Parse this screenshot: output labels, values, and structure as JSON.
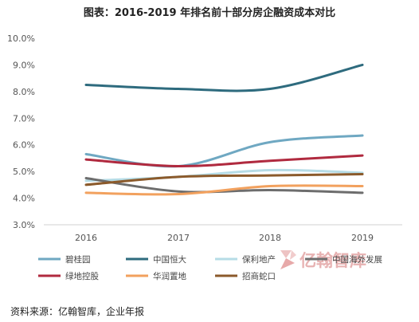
{
  "chart_data": {
    "type": "line",
    "title": "图表：2016-2019 年排名前十部分房企融资成本对比",
    "xlabel": "",
    "ylabel": "",
    "x": [
      "2016",
      "2017",
      "2018",
      "2019"
    ],
    "ylim": [
      3.0,
      10.0
    ],
    "yticks": [
      "3.0%",
      "4.0%",
      "5.0%",
      "6.0%",
      "7.0%",
      "8.0%",
      "9.0%",
      "10.0%"
    ],
    "ytick_values": [
      3,
      4,
      5,
      6,
      7,
      8,
      9,
      10
    ],
    "grid": false,
    "legend_position": "bottom",
    "series": [
      {
        "name": "碧桂园",
        "color": "#6fa8c2",
        "values": [
          5.65,
          5.2,
          6.1,
          6.35
        ]
      },
      {
        "name": "中国恒大",
        "color": "#2e6b7e",
        "values": [
          8.25,
          8.1,
          8.1,
          9.0
        ]
      },
      {
        "name": "保利地产",
        "color": "#b6dce6",
        "values": [
          4.65,
          4.8,
          5.05,
          4.95
        ]
      },
      {
        "name": "中国海外发展",
        "color": "#6d6d6d",
        "values": [
          4.75,
          4.25,
          4.3,
          4.2
        ]
      },
      {
        "name": "绿地控股",
        "color": "#b02a3f",
        "values": [
          5.45,
          5.2,
          5.4,
          5.6
        ]
      },
      {
        "name": "华润置地",
        "color": "#f2a15e",
        "values": [
          4.2,
          4.15,
          4.45,
          4.45
        ]
      },
      {
        "name": "招商蛇口",
        "color": "#8b5a2b",
        "values": [
          4.5,
          4.8,
          4.85,
          4.9
        ]
      }
    ]
  },
  "watermark": {
    "text": "亿翰智库",
    "color": "#e7b2b2"
  },
  "source": "资料来源：亿翰智库，企业年报"
}
